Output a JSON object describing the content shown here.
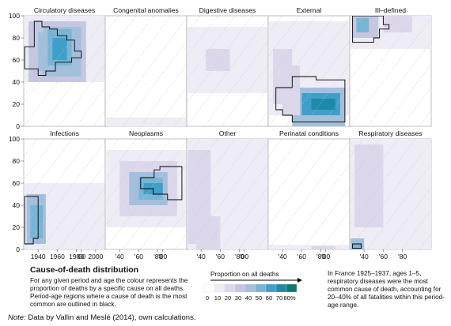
{
  "chart_data": {
    "type": "heatmap",
    "x_axis": {
      "ticks_first_panel": [
        "1940",
        "1960",
        "1980",
        "2000"
      ],
      "ticks_other_panels": [
        "'40",
        "'60",
        "'80",
        "'00"
      ]
    },
    "y_axis": {
      "range": [
        0,
        100
      ],
      "ticks": [
        "0",
        "20",
        "40",
        "60",
        "80",
        "100"
      ]
    },
    "panels": [
      {
        "name": "Circulatory diseases",
        "row": 1
      },
      {
        "name": "Congenital anomalies",
        "row": 1
      },
      {
        "name": "Digestive diseases",
        "row": 1
      },
      {
        "name": "External",
        "row": 1
      },
      {
        "name": "Ill–defined",
        "row": 1
      },
      {
        "name": "Infections",
        "row": 2
      },
      {
        "name": "Neoplasms",
        "row": 2
      },
      {
        "name": "Other",
        "row": 2
      },
      {
        "name": "Perinatal conditions",
        "row": 2
      },
      {
        "name": "Respiratory diseases",
        "row": 2
      }
    ],
    "color_scale": {
      "title": "Proportion on all deaths",
      "breaks": [
        "0",
        "10",
        "20",
        "30",
        "40",
        "50",
        "60",
        "70",
        "80%"
      ],
      "colors": [
        "#ffffff",
        "#eeecf5",
        "#dcd7ea",
        "#c5c7e0",
        "#a3bfdc",
        "#77b5d6",
        "#3f9fc9",
        "#1c8aa8",
        "#0d7a6b"
      ]
    }
  },
  "explanation": {
    "title": "Cause-of-death distribution",
    "body": "For any given period and age the colour represents the proportion of deaths by a specific cause on all deaths. Period-age regions where a cause of death is the most common are outlined in black."
  },
  "annotation": "In France 1925–1937, ages 1–5, respiratory diseases were the most common cause of death, accounting for 20–40% of all fatalities within this period-age range.",
  "note": {
    "label": "Note:",
    "text": "Data by Vallin and Meslé (2014), own calculations."
  }
}
